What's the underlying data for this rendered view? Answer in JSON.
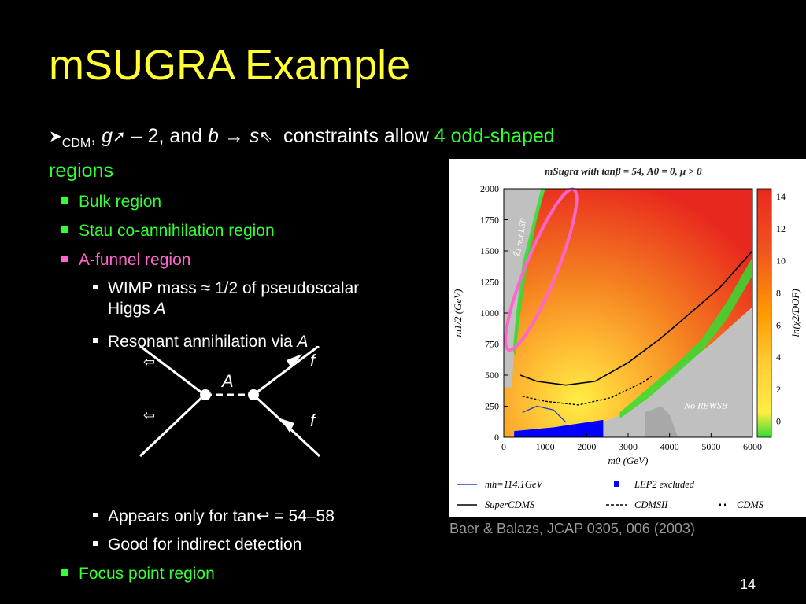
{
  "slide": {
    "title": "mSUGRA Example",
    "subtitle_parts": {
      "sym1": "➤",
      "cdm": "CDM",
      "comma1": ",",
      "g": "g",
      "sym2": "➚",
      "minus2": "– 2, and",
      "b": "b",
      "arrow": "→",
      "s": "s",
      "sym3": "⇖",
      "constraints": "constraints allow",
      "green": "4 odd-shaped",
      "regions": "regions"
    },
    "bullets": [
      {
        "text": "Bulk region",
        "color": "#33ff33"
      },
      {
        "text": "Stau co-annihilation region",
        "color": "#33ff33"
      },
      {
        "text": "A-funnel region",
        "color": "#ff66cc"
      }
    ],
    "sub_bullets_a": [
      {
        "line1": "WIMP mass ≈ 1/2 of pseudoscalar",
        "line2": "Higgs",
        "ital": "A"
      },
      {
        "line1": "Resonant annihilation via",
        "ital": "A"
      }
    ],
    "sub_bullets_b": [
      {
        "pre": "Appears only for tan",
        "sym": "↩",
        "post": " = 54–58"
      },
      {
        "text": "Good for indirect detection"
      }
    ],
    "last_bullet": {
      "text": "Focus point region",
      "color": "#33ff33"
    },
    "diagram": {
      "label_A": "A",
      "label_f1": "f",
      "label_f2": "f",
      "chi1": "⇦",
      "chi2": "⇦"
    },
    "caption": "Baer & Balazs, JCAP 0305, 006 (2003)",
    "page_number": "14"
  },
  "chart_data": {
    "type": "heatmap",
    "title": "mSugra with tanβ = 54, A0 = 0, μ > 0",
    "xlabel": "m0 (GeV)",
    "ylabel": "m1/2 (GeV)",
    "zlabel": "ln(χ2/DOF)",
    "xlim": [
      0,
      6000
    ],
    "ylim": [
      0,
      2000
    ],
    "xticks": [
      "0",
      "1000",
      "2000",
      "3000",
      "4000",
      "5000",
      "6000"
    ],
    "yticks": [
      "0",
      "250",
      "500",
      "750",
      "1000",
      "1250",
      "1500",
      "1750",
      "2000"
    ],
    "colorbar_ticks": [
      "0",
      "2",
      "4",
      "6",
      "8",
      "10",
      "12",
      "14"
    ],
    "annotations": [
      "Z̃1 not LSP",
      "No REWSB"
    ],
    "legend": [
      {
        "label": "mh=114.1GeV",
        "style": "blue line"
      },
      {
        "label": "LEP2 excluded",
        "style": "blue square"
      },
      {
        "label": "SuperCDMS",
        "style": "solid line"
      },
      {
        "label": "CDMSII",
        "style": "dashed line"
      },
      {
        "label": "CDMS",
        "style": "dotted line"
      }
    ],
    "colors": {
      "high": "#e8281e",
      "mid": "#ff9900",
      "low": "#ffee44",
      "fit": "#33dd33",
      "excluded": "#c0c0c0",
      "lep": "#0000ff"
    }
  }
}
